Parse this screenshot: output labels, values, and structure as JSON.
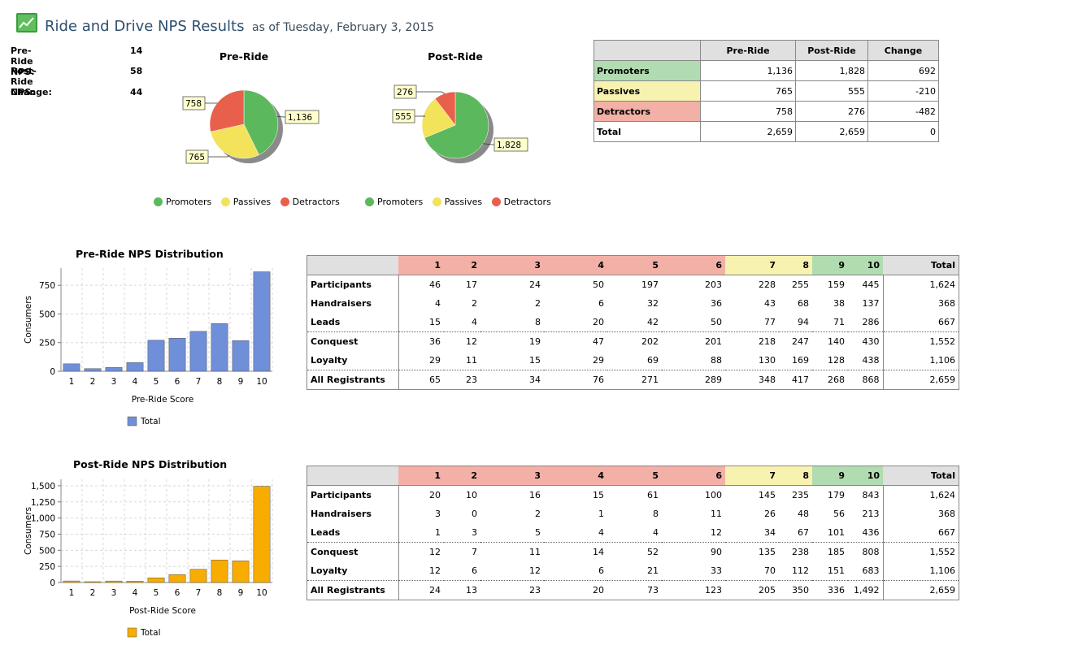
{
  "header": {
    "title": "Ride and Drive NPS Results",
    "as_of": "as of Tuesday, February 3, 2015"
  },
  "nps": [
    {
      "label": "Pre-Ride NPS:",
      "value": "14"
    },
    {
      "label": "Post-Ride NPS:",
      "value": "58"
    },
    {
      "label": "Change:",
      "value": "44"
    }
  ],
  "colors": {
    "promoters": "#5cb85c",
    "passives": "#f2e35a",
    "detractors": "#e8604c",
    "bar_pre": "#6f8fd8",
    "bar_post": "#f8ac00"
  },
  "summary": {
    "headers": [
      "",
      "Pre-Ride",
      "Post-Ride",
      "Change"
    ],
    "rows": [
      {
        "label": "Promoters",
        "pre": "1,136",
        "post": "1,828",
        "change": "692",
        "cls": "c-grn"
      },
      {
        "label": "Passives",
        "pre": "765",
        "post": "555",
        "change": "-210",
        "cls": "c-yel"
      },
      {
        "label": "Detractors",
        "pre": "758",
        "post": "276",
        "change": "-482",
        "cls": "c-red"
      },
      {
        "label": "Total",
        "pre": "2,659",
        "post": "2,659",
        "change": "0",
        "cls": ""
      }
    ]
  },
  "legend": [
    "Promoters",
    "Passives",
    "Detractors"
  ],
  "chart_data": [
    {
      "type": "pie",
      "title": "Pre-Ride",
      "labels": [
        "Promoters",
        "Passives",
        "Detractors"
      ],
      "values": [
        1136,
        765,
        758
      ],
      "value_labels": [
        "1,136",
        "765",
        "758"
      ]
    },
    {
      "type": "pie",
      "title": "Post-Ride",
      "labels": [
        "Promoters",
        "Passives",
        "Detractors"
      ],
      "values": [
        1828,
        555,
        276
      ],
      "value_labels": [
        "1,828",
        "555",
        "276"
      ]
    },
    {
      "type": "bar",
      "title": "Pre-Ride NPS Distribution",
      "categories": [
        "1",
        "2",
        "3",
        "4",
        "5",
        "6",
        "7",
        "8",
        "9",
        "10"
      ],
      "values": [
        65,
        23,
        34,
        76,
        271,
        289,
        348,
        417,
        268,
        868
      ],
      "xlabel": "Pre-Ride Score",
      "ylabel": "Consumers",
      "ylim": [
        0,
        900
      ],
      "yticks": [
        0,
        250,
        500,
        750
      ],
      "ytick_labels": [
        "0",
        "250",
        "500",
        "750"
      ],
      "legend": "Total",
      "grid": true
    },
    {
      "type": "bar",
      "title": "Post-Ride NPS Distribution",
      "categories": [
        "1",
        "2",
        "3",
        "4",
        "5",
        "6",
        "7",
        "8",
        "9",
        "10"
      ],
      "values": [
        24,
        13,
        23,
        20,
        73,
        123,
        205,
        350,
        336,
        1492
      ],
      "xlabel": "Post-Ride Score",
      "ylabel": "Consumers",
      "ylim": [
        0,
        1600
      ],
      "yticks": [
        0,
        250,
        500,
        750,
        1000,
        1250,
        1500
      ],
      "ytick_labels": [
        "0",
        "250",
        "500",
        "750",
        "1,000",
        "1,250",
        "1,500"
      ],
      "legend": "Total",
      "grid": true
    }
  ],
  "dist_header": [
    "",
    "1",
    "2",
    "3",
    "4",
    "5",
    "6",
    "7",
    "8",
    "9",
    "10",
    "Total"
  ],
  "pre_table": [
    {
      "label": "Participants",
      "vals": [
        "46",
        "17",
        "24",
        "50",
        "197",
        "203",
        "228",
        "255",
        "159",
        "445",
        "1,624"
      ]
    },
    {
      "label": "Handraisers",
      "vals": [
        "4",
        "2",
        "2",
        "6",
        "32",
        "36",
        "43",
        "68",
        "38",
        "137",
        "368"
      ]
    },
    {
      "label": "Leads",
      "vals": [
        "15",
        "4",
        "8",
        "20",
        "42",
        "50",
        "77",
        "94",
        "71",
        "286",
        "667"
      ]
    },
    {
      "label": "Conquest",
      "vals": [
        "36",
        "12",
        "19",
        "47",
        "202",
        "201",
        "218",
        "247",
        "140",
        "430",
        "1,552"
      ]
    },
    {
      "label": "Loyalty",
      "vals": [
        "29",
        "11",
        "15",
        "29",
        "69",
        "88",
        "130",
        "169",
        "128",
        "438",
        "1,106"
      ]
    },
    {
      "label": "All Registrants",
      "vals": [
        "65",
        "23",
        "34",
        "76",
        "271",
        "289",
        "348",
        "417",
        "268",
        "868",
        "2,659"
      ]
    }
  ],
  "post_table": [
    {
      "label": "Participants",
      "vals": [
        "20",
        "10",
        "16",
        "15",
        "61",
        "100",
        "145",
        "235",
        "179",
        "843",
        "1,624"
      ]
    },
    {
      "label": "Handraisers",
      "vals": [
        "3",
        "0",
        "2",
        "1",
        "8",
        "11",
        "26",
        "48",
        "56",
        "213",
        "368"
      ]
    },
    {
      "label": "Leads",
      "vals": [
        "1",
        "3",
        "5",
        "4",
        "4",
        "12",
        "34",
        "67",
        "101",
        "436",
        "667"
      ]
    },
    {
      "label": "Conquest",
      "vals": [
        "12",
        "7",
        "11",
        "14",
        "52",
        "90",
        "135",
        "238",
        "185",
        "808",
        "1,552"
      ]
    },
    {
      "label": "Loyalty",
      "vals": [
        "12",
        "6",
        "12",
        "6",
        "21",
        "33",
        "70",
        "112",
        "151",
        "683",
        "1,106"
      ]
    },
    {
      "label": "All Registrants",
      "vals": [
        "24",
        "13",
        "23",
        "20",
        "73",
        "123",
        "205",
        "350",
        "336",
        "1,492",
        "2,659"
      ]
    }
  ]
}
